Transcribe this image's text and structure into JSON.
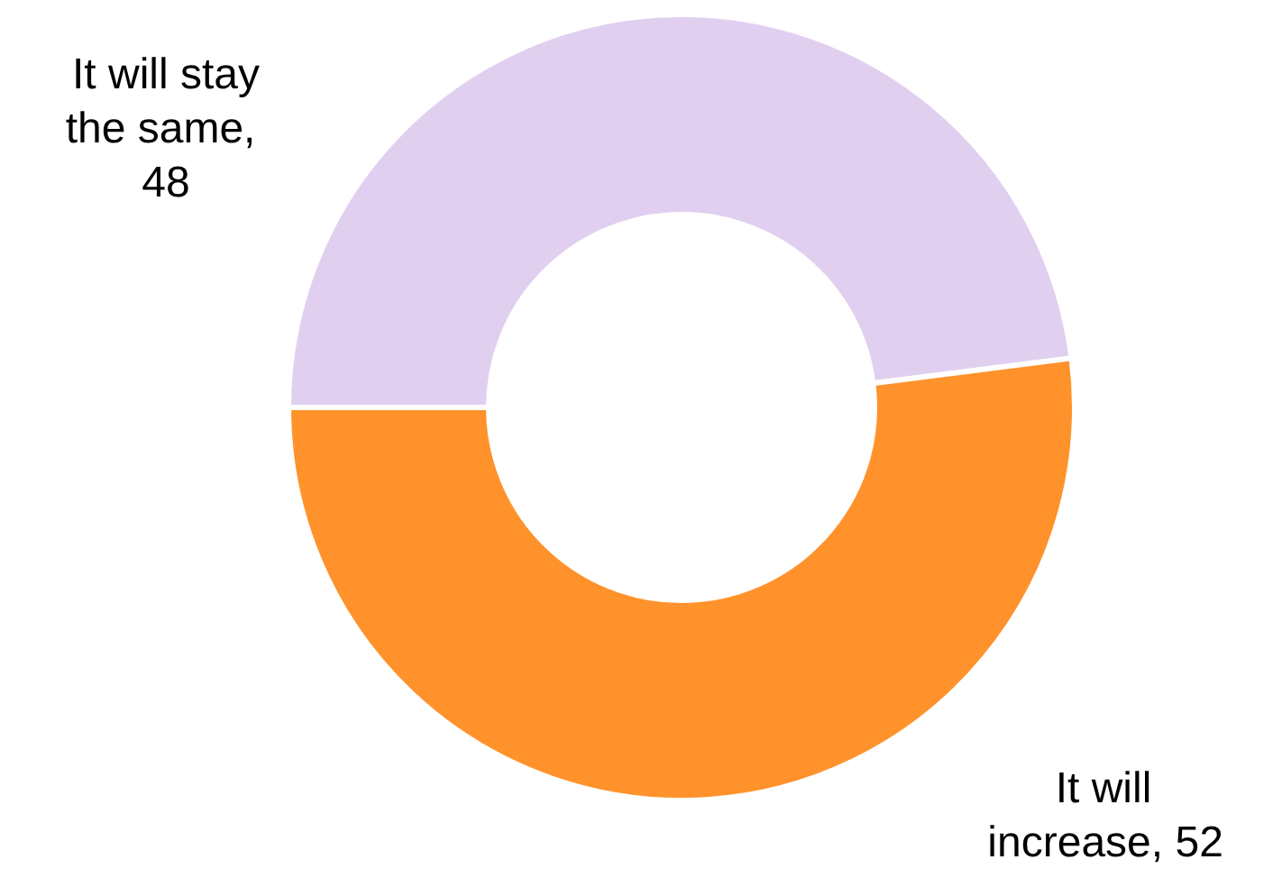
{
  "chart_data": {
    "type": "donut",
    "categories": [
      "It will stay the same",
      "It will increase"
    ],
    "values": [
      48,
      52
    ],
    "colors": [
      "#e1cff0",
      "#ff922b"
    ],
    "data_labels": true,
    "annotations": [
      ",",
      ","
    ]
  }
}
